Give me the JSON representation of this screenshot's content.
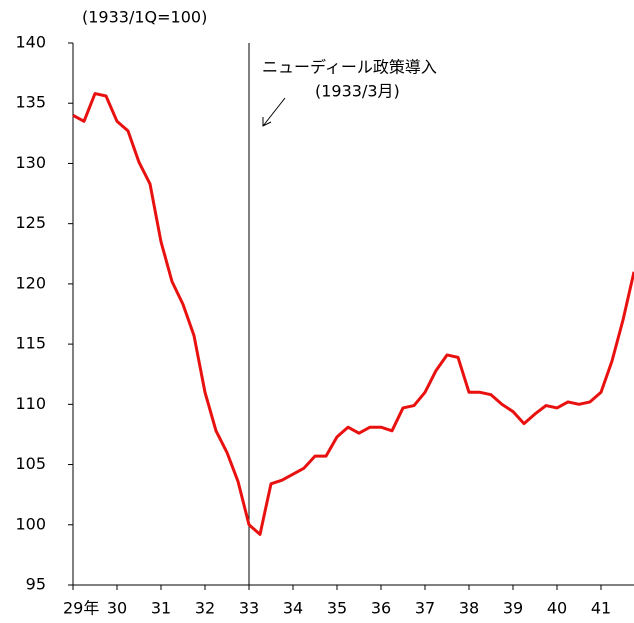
{
  "chart_data": {
    "type": "line",
    "unit_label": "(1933/1Q=100)",
    "annotation": "ニューディール政策導入",
    "annotation_sub": "(1933/3月)",
    "vline": 33,
    "x": [
      29,
      29.25,
      29.5,
      29.75,
      30,
      30.25,
      30.5,
      30.75,
      31,
      31.25,
      31.5,
      31.75,
      32,
      32.25,
      32.5,
      32.75,
      33,
      33.25,
      33.5,
      33.75,
      34,
      34.25,
      34.5,
      34.75,
      35,
      35.25,
      35.5,
      35.75,
      36,
      36.25,
      36.5,
      36.75,
      37,
      37.25,
      37.5,
      37.75,
      38,
      38.25,
      38.5,
      38.75,
      39,
      39.25,
      39.5,
      39.75,
      40,
      40.25,
      40.5,
      40.75,
      41,
      41.25,
      41.5,
      41.75
    ],
    "series": [
      {
        "color": "#e8110f",
        "values": [
          134.0,
          133.5,
          135.8,
          135.6,
          133.5,
          132.7,
          130.1,
          128.3,
          123.5,
          120.2,
          118.3,
          115.7,
          111.0,
          107.8,
          106.0,
          103.6,
          100.0,
          99.2,
          103.4,
          103.7,
          104.2,
          104.7,
          105.7,
          105.7,
          107.3,
          108.1,
          107.6,
          108.1,
          108.1,
          107.8,
          109.7,
          109.9,
          111.0,
          112.8,
          114.1,
          113.9,
          111.0,
          111.0,
          110.8,
          110.0,
          109.4,
          108.4,
          109.2,
          109.9,
          109.7,
          110.2,
          110.0,
          110.2,
          111.0,
          113.6,
          117.0,
          121.0
        ]
      }
    ],
    "xlim": [
      29,
      41.75
    ],
    "xticks": [
      {
        "value": 29,
        "label": "29年"
      },
      30,
      31,
      32,
      33,
      34,
      35,
      36,
      37,
      38,
      39,
      40,
      41
    ],
    "ylim": [
      95,
      140
    ],
    "yticks": [
      95,
      100,
      105,
      110,
      115,
      120,
      125,
      130,
      135,
      140
    ]
  }
}
